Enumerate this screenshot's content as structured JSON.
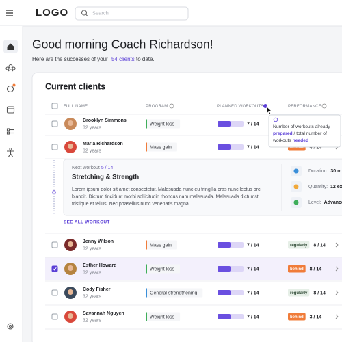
{
  "header": {
    "logo": "LOGO",
    "search_placeholder": "Search"
  },
  "greeting": {
    "title": "Good morning Coach Richardson!",
    "subtitle_before": "Here are the successes of your",
    "clients_link": "54 clients",
    "subtitle_after": "to date."
  },
  "card": {
    "title": "Current clients",
    "columns": [
      "FULL NAME",
      "PROGRAM",
      "PLANNED WORKOUTS",
      "PERFORMANCE"
    ]
  },
  "tooltip": {
    "parts": [
      "Number of workouts already",
      "prepared",
      "/ total number of",
      "workouts",
      "needed"
    ]
  },
  "clients": [
    {
      "name": "Brooklyn Simmons",
      "age": "32 years",
      "program": "Weight loss",
      "program_color": "#3fae5a",
      "planned": "7 / 14",
      "avatar_color": "#c98a5a"
    },
    {
      "name": "Maria Richardson",
      "age": "32 years",
      "program": "Mass gain",
      "program_color": "#f07c3a",
      "planned": "7 / 14",
      "performance_status": "behind",
      "performance": "4 / 14",
      "avatar_color": "#d9483b"
    },
    {
      "name": "Jenny Wilson",
      "age": "32 years",
      "program": "Mass gain",
      "program_color": "#f07c3a",
      "planned": "7 / 14",
      "performance_status": "regularly",
      "performance": "8 / 14",
      "avatar_color": "#7a2a2a"
    },
    {
      "name": "Esther Howard",
      "age": "32 years",
      "program": "Weight loss",
      "program_color": "#3fae5a",
      "planned": "7 / 14",
      "performance_status": "behind",
      "performance": "8 / 14",
      "avatar_color": "#b5833f",
      "selected": true
    },
    {
      "name": "Cody Fisher",
      "age": "32 years",
      "program": "General strengthening",
      "program_color": "#3a8fd9",
      "planned": "7 / 14",
      "performance_status": "regularly",
      "performance": "8 / 14",
      "avatar_color": "#3b4a5c"
    },
    {
      "name": "Savannah Nguyen",
      "age": "32 years",
      "program": "Weight loss",
      "program_color": "#3fae5a",
      "planned": "7 / 14",
      "performance_status": "behind",
      "performance": "3 / 14",
      "avatar_color": "#d9483b"
    }
  ],
  "expanded": {
    "next_label": "Next workout",
    "next_value": "5 / 14",
    "title": "Stretching & Strength",
    "description": [
      "Lorem ipsum dolor sit amet consectetur. Malesuada nunc eu fringilla cras nunc lectus orci",
      "blandit. Dictum tincidunt morbi sollicitudin rhoncus nam malesuada. Malesuada dictumst",
      "tristique et tellus. Nec phasellus nunc venenatis magna."
    ],
    "details": [
      {
        "label": "Duration:",
        "value": "30 m"
      },
      {
        "label": "Quantity:",
        "value": "12 ex"
      },
      {
        "label": "Level:",
        "value": "Advance"
      }
    ],
    "see_all": "SEE ALL WORKOUT"
  }
}
